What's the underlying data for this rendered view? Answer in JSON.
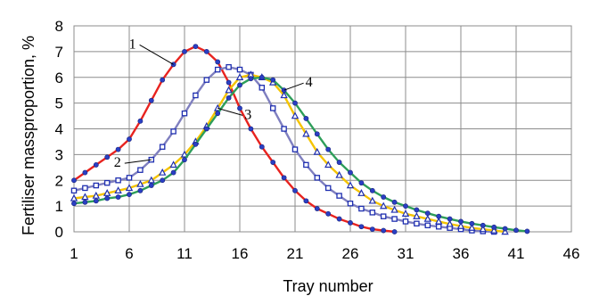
{
  "chart_data": {
    "type": "line",
    "xlabel": "Tray number",
    "ylabel": "Fertiliser massproportion, %",
    "xlim": [
      1,
      46
    ],
    "ylim": [
      0,
      8
    ],
    "x_ticks": [
      1,
      6,
      11,
      16,
      21,
      26,
      31,
      36,
      41,
      46
    ],
    "y_ticks": [
      0,
      1,
      2,
      3,
      4,
      5,
      6,
      7,
      8
    ],
    "grid": true,
    "series": [
      {
        "name": "1",
        "color": "#e8231f",
        "marker": "circle",
        "x": [
          1,
          2,
          3,
          4,
          5,
          6,
          7,
          8,
          9,
          10,
          11,
          12,
          13,
          14,
          15,
          16,
          17,
          18,
          19,
          20,
          21,
          22,
          23,
          24,
          25,
          26,
          27,
          28,
          29,
          30
        ],
        "values": [
          2.0,
          2.3,
          2.6,
          2.9,
          3.2,
          3.6,
          4.3,
          5.1,
          5.9,
          6.5,
          7.0,
          7.2,
          7.0,
          6.6,
          5.8,
          4.8,
          4.0,
          3.3,
          2.7,
          2.1,
          1.6,
          1.2,
          0.9,
          0.7,
          0.5,
          0.35,
          0.2,
          0.1,
          0.05,
          0.0
        ]
      },
      {
        "name": "2",
        "color": "#7f7fbf",
        "marker": "square",
        "x": [
          1,
          2,
          3,
          4,
          5,
          6,
          7,
          8,
          9,
          10,
          11,
          12,
          13,
          14,
          15,
          16,
          17,
          18,
          19,
          20,
          21,
          22,
          23,
          24,
          25,
          26,
          27,
          28,
          29,
          30,
          31,
          32,
          33,
          34,
          35,
          36,
          37,
          38,
          39
        ],
        "values": [
          1.6,
          1.7,
          1.8,
          1.9,
          2.0,
          2.1,
          2.4,
          2.8,
          3.3,
          3.9,
          4.6,
          5.3,
          5.9,
          6.3,
          6.4,
          6.3,
          6.1,
          5.6,
          4.8,
          4.0,
          3.2,
          2.6,
          2.1,
          1.7,
          1.4,
          1.1,
          0.9,
          0.75,
          0.6,
          0.5,
          0.4,
          0.32,
          0.25,
          0.2,
          0.15,
          0.1,
          0.05,
          0.02,
          0.0
        ]
      },
      {
        "name": "3",
        "color": "#f5c400",
        "marker": "triangle",
        "x": [
          1,
          2,
          3,
          4,
          5,
          6,
          7,
          8,
          9,
          10,
          11,
          12,
          13,
          14,
          15,
          16,
          17,
          18,
          19,
          20,
          21,
          22,
          23,
          24,
          25,
          26,
          27,
          28,
          29,
          30,
          31,
          32,
          33,
          34,
          35,
          36,
          37,
          38,
          39,
          40
        ],
        "values": [
          1.3,
          1.35,
          1.4,
          1.5,
          1.6,
          1.7,
          1.85,
          2.0,
          2.3,
          2.6,
          3.0,
          3.5,
          4.1,
          4.8,
          5.5,
          6.0,
          6.1,
          6.0,
          5.8,
          5.3,
          4.5,
          3.8,
          3.1,
          2.6,
          2.2,
          1.8,
          1.5,
          1.2,
          1.0,
          0.85,
          0.7,
          0.6,
          0.5,
          0.4,
          0.3,
          0.22,
          0.15,
          0.1,
          0.05,
          0.0
        ]
      },
      {
        "name": "4",
        "color": "#2e9e5a",
        "marker": "circle",
        "x": [
          1,
          2,
          3,
          4,
          5,
          6,
          7,
          8,
          9,
          10,
          11,
          12,
          13,
          14,
          15,
          16,
          17,
          18,
          19,
          20,
          21,
          22,
          23,
          24,
          25,
          26,
          27,
          28,
          29,
          30,
          31,
          32,
          33,
          34,
          35,
          36,
          37,
          38,
          39,
          40,
          41,
          42
        ],
        "values": [
          1.1,
          1.15,
          1.2,
          1.3,
          1.35,
          1.45,
          1.6,
          1.8,
          2.0,
          2.3,
          2.8,
          3.4,
          4.0,
          4.6,
          5.2,
          5.7,
          5.95,
          6.0,
          5.9,
          5.5,
          5.0,
          4.4,
          3.8,
          3.2,
          2.7,
          2.3,
          1.9,
          1.6,
          1.35,
          1.15,
          1.0,
          0.85,
          0.72,
          0.6,
          0.5,
          0.4,
          0.32,
          0.25,
          0.18,
          0.12,
          0.06,
          0.02
        ]
      }
    ],
    "annotations": [
      {
        "text": "1",
        "series": 0,
        "at_x": 10
      },
      {
        "text": "2",
        "series": 1,
        "at_x": 8
      },
      {
        "text": "3",
        "series": 2,
        "at_x": 14
      },
      {
        "text": "4",
        "series": 3,
        "at_x": 20
      }
    ]
  }
}
